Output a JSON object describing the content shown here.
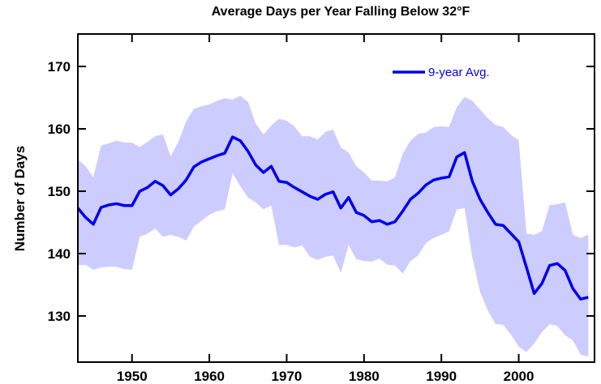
{
  "chart_data": {
    "type": "line",
    "title": "Average Days per Year Falling Below 32°F",
    "y_label": "Number of Days",
    "x": [
      1943,
      1944,
      1945,
      1946,
      1947,
      1948,
      1949,
      1950,
      1951,
      1952,
      1953,
      1954,
      1955,
      1956,
      1957,
      1958,
      1959,
      1960,
      1961,
      1962,
      1963,
      1964,
      1965,
      1966,
      1967,
      1968,
      1969,
      1970,
      1971,
      1972,
      1973,
      1974,
      1975,
      1976,
      1977,
      1978,
      1979,
      1980,
      1981,
      1982,
      1983,
      1984,
      1985,
      1986,
      1987,
      1988,
      1989,
      1990,
      1991,
      1992,
      1993,
      1994,
      1995,
      1996,
      1997,
      1998,
      1999,
      2000,
      2001,
      2002,
      2003,
      2004,
      2005,
      2006,
      2007,
      2008,
      2009
    ],
    "series": [
      {
        "name": "9-year Avg.",
        "color": "#0000ee",
        "values": [
          147.3,
          145.8,
          144.7,
          147.4,
          147.8,
          148.0,
          147.7,
          147.7,
          150.0,
          150.6,
          151.6,
          150.9,
          149.4,
          150.4,
          151.8,
          153.9,
          154.7,
          155.2,
          155.7,
          156.1,
          158.7,
          158.1,
          156.4,
          154.2,
          153.0,
          154.0,
          151.6,
          151.4,
          150.6,
          149.9,
          149.2,
          148.7,
          149.5,
          149.9,
          147.3,
          149.0,
          146.6,
          146.1,
          145.1,
          145.3,
          144.7,
          145.1,
          146.8,
          148.7,
          149.7,
          151.0,
          151.8,
          152.1,
          152.3,
          155.5,
          156.2,
          151.6,
          148.7,
          146.6,
          144.7,
          144.5,
          143.2,
          141.9,
          137.8,
          133.6,
          135.2,
          138.1,
          138.4,
          137.3,
          134.4,
          132.7,
          133.0
        ]
      }
    ],
    "band": {
      "color": "#ccccff",
      "upper": [
        155.1,
        154.0,
        152.2,
        157.3,
        157.7,
        158.1,
        157.8,
        157.8,
        157.1,
        157.9,
        158.8,
        159.1,
        155.6,
        157.9,
        161.2,
        163.2,
        163.6,
        163.9,
        164.5,
        164.9,
        164.7,
        165.3,
        164.3,
        160.8,
        159.1,
        160.5,
        161.6,
        161.3,
        160.4,
        158.8,
        158.8,
        158.3,
        159.5,
        159.9,
        157.0,
        156.2,
        154.0,
        153.0,
        151.7,
        151.7,
        151.6,
        152.2,
        156.0,
        158.1,
        159.2,
        159.4,
        160.3,
        160.4,
        160.3,
        163.5,
        165.1,
        164.5,
        163.1,
        161.7,
        160.6,
        160.3,
        159.0,
        158.2,
        143.2,
        143.0,
        143.6,
        147.8,
        147.9,
        148.2,
        143.0,
        142.5,
        143.0
      ],
      "lower": [
        138.1,
        138.2,
        137.4,
        137.8,
        137.9,
        137.9,
        137.5,
        137.4,
        142.7,
        143.2,
        144.0,
        142.7,
        143.0,
        142.7,
        142.1,
        144.3,
        145.3,
        146.2,
        146.8,
        147.1,
        152.9,
        150.8,
        149.0,
        148.2,
        147.1,
        147.7,
        141.4,
        141.4,
        141.0,
        141.3,
        139.5,
        139.0,
        139.5,
        139.7,
        136.9,
        141.4,
        139.1,
        138.8,
        138.7,
        139.2,
        138.2,
        138.1,
        136.8,
        138.8,
        139.7,
        141.7,
        142.5,
        143.0,
        143.6,
        147.1,
        147.3,
        139.4,
        133.9,
        130.9,
        128.7,
        128.6,
        127.0,
        125.1,
        124.2,
        125.6,
        127.4,
        128.7,
        128.4,
        126.9,
        126.1,
        123.8,
        123.5
      ]
    },
    "xlim": [
      1943,
      2009.8
    ],
    "ylim": [
      122.6,
      175.2
    ],
    "xticks": [
      1950,
      1960,
      1970,
      1980,
      1990,
      2000
    ],
    "yticks": [
      130,
      140,
      150,
      160,
      170
    ],
    "legend": "upper-right"
  }
}
